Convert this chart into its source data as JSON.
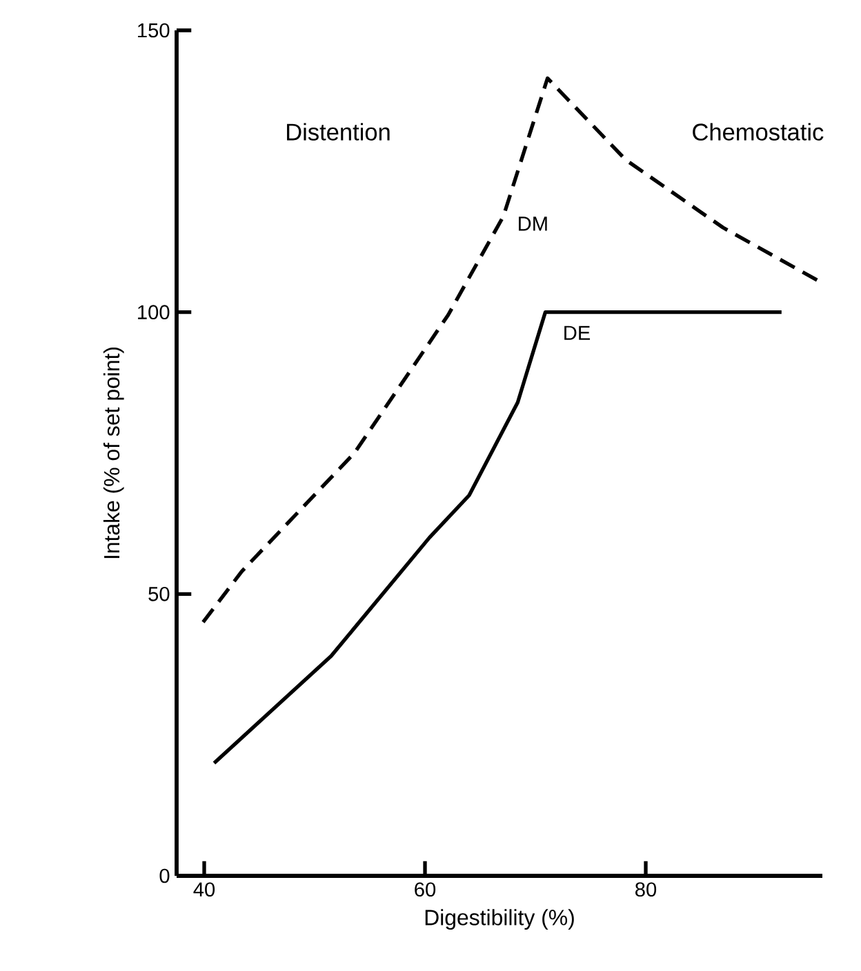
{
  "chart_data": {
    "type": "line",
    "xlabel": "Digestibility (%)",
    "ylabel": "Intake (% of set point)",
    "xlim": [
      37.5,
      96
    ],
    "ylim": [
      0,
      150
    ],
    "xticks": [
      40,
      60,
      80
    ],
    "yticks": [
      0,
      50,
      100,
      150
    ],
    "grid": false,
    "legend": false,
    "marker": "none",
    "annotations": [
      "Distention",
      "Chemostatic"
    ],
    "series": [
      {
        "name": "DM",
        "color": "#000000",
        "line_style": "dashed",
        "x": [
          39.9,
          43.4,
          53.6,
          62.1,
          67.1,
          71.1,
          78.2,
          87,
          95.6
        ],
        "values": [
          45,
          54,
          75,
          99.5,
          117,
          141.5,
          127,
          115,
          105.6
        ]
      },
      {
        "name": "DE",
        "color": "#000000",
        "line_style": "solid",
        "x": [
          40.9,
          51.5,
          60.4,
          64,
          68.4,
          70.9,
          92.3
        ],
        "values": [
          20,
          39,
          60,
          67.5,
          84,
          100,
          100
        ]
      }
    ]
  }
}
